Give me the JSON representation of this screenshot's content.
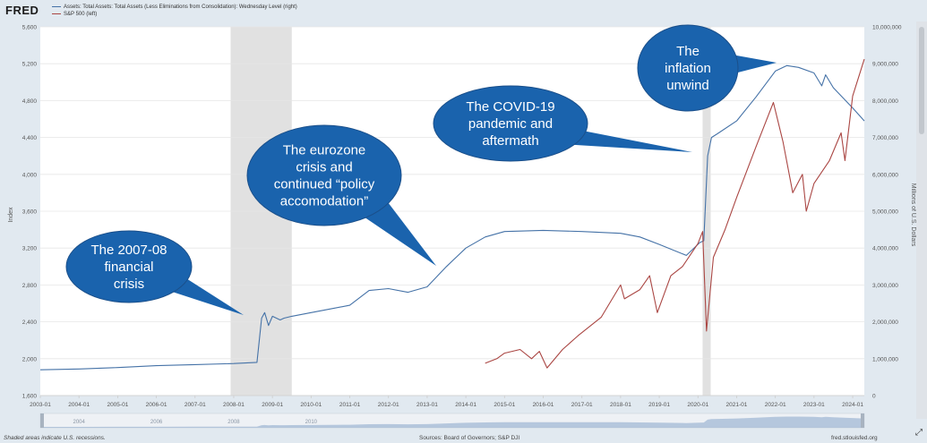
{
  "header": {
    "logo": "FRED",
    "legend": [
      {
        "label": "Assets: Total Assets: Total Assets (Less Eliminations from Consolidation): Wednesday Level (right)",
        "color": "#4572a7"
      },
      {
        "label": "S&P 500 (left)",
        "color": "#aa4643"
      }
    ]
  },
  "chart_data": {
    "type": "line",
    "left_axis": {
      "label": "Index",
      "ylim": [
        1600,
        5600
      ],
      "ticks": [
        "1,600",
        "2,000",
        "2,400",
        "2,800",
        "3,200",
        "3,600",
        "4,000",
        "4,400",
        "4,800",
        "5,200",
        "5,600"
      ]
    },
    "right_axis": {
      "label": "Millions of U.S. Dollars",
      "ylim": [
        0,
        10000000
      ],
      "ticks": [
        "0",
        "1,000,000",
        "2,000,000",
        "3,000,000",
        "4,000,000",
        "5,000,000",
        "6,000,000",
        "7,000,000",
        "8,000,000",
        "9,000,000",
        "10,000,000"
      ]
    },
    "x_axis": {
      "xlim": [
        2003.0,
        2024.3
      ],
      "ticks": [
        "2003-01",
        "2004-01",
        "2005-01",
        "2006-01",
        "2007-01",
        "2008-01",
        "2009-01",
        "2010-01",
        "2011-01",
        "2012-01",
        "2013-01",
        "2014-01",
        "2015-01",
        "2016-01",
        "2017-01",
        "2018-01",
        "2019-01",
        "2020-01",
        "2021-01",
        "2022-01",
        "2023-01",
        "2024-01"
      ]
    },
    "recessions": [
      [
        2007.92,
        2009.5
      ],
      [
        2020.12,
        2020.33
      ]
    ],
    "series": [
      {
        "name": "Assets: Total Assets: Total Assets (Less Eliminations from Consolidation): Wednesday Level (right)",
        "axis": "right",
        "color": "#4572a7",
        "x": [
          2003.0,
          2004.0,
          2005.0,
          2006.0,
          2007.0,
          2008.0,
          2008.6,
          2008.72,
          2008.8,
          2008.9,
          2009.0,
          2009.2,
          2009.3,
          2009.5,
          2010.0,
          2010.5,
          2011.0,
          2011.5,
          2012.0,
          2012.5,
          2013.0,
          2013.5,
          2014.0,
          2014.5,
          2015.0,
          2016.0,
          2017.0,
          2018.0,
          2018.5,
          2019.0,
          2019.7,
          2020.05,
          2020.15,
          2020.25,
          2020.35,
          2020.5,
          2021.0,
          2021.5,
          2022.0,
          2022.3,
          2022.6,
          2023.0,
          2023.2,
          2023.3,
          2023.5,
          2024.0,
          2024.3
        ],
        "y": [
          700000,
          720000,
          760000,
          810000,
          840000,
          870000,
          900000,
          2100000,
          2250000,
          1900000,
          2150000,
          2050000,
          2100000,
          2150000,
          2250000,
          2350000,
          2450000,
          2850000,
          2900000,
          2800000,
          2950000,
          3500000,
          4000000,
          4300000,
          4450000,
          4480000,
          4450000,
          4400000,
          4300000,
          4100000,
          3800000,
          4150000,
          4200000,
          6500000,
          7000000,
          7100000,
          7450000,
          8100000,
          8800000,
          8950000,
          8900000,
          8750000,
          8400000,
          8700000,
          8350000,
          7800000,
          7450000
        ]
      },
      {
        "name": "S&P 500 (left)",
        "axis": "left",
        "color": "#aa4643",
        "x": [
          2014.5,
          2014.8,
          2015.0,
          2015.4,
          2015.7,
          2015.9,
          2016.1,
          2016.5,
          2016.9,
          2017.5,
          2018.0,
          2018.1,
          2018.5,
          2018.75,
          2018.95,
          2019.3,
          2019.6,
          2020.0,
          2020.12,
          2020.22,
          2020.4,
          2020.7,
          2021.0,
          2021.5,
          2021.95,
          2022.2,
          2022.45,
          2022.7,
          2022.8,
          2023.0,
          2023.4,
          2023.7,
          2023.8,
          2024.0,
          2024.3
        ],
        "y": [
          1950,
          2000,
          2060,
          2100,
          2000,
          2080,
          1900,
          2100,
          2250,
          2450,
          2800,
          2650,
          2750,
          2900,
          2500,
          2900,
          3000,
          3250,
          3380,
          2300,
          3100,
          3400,
          3750,
          4300,
          4780,
          4350,
          3800,
          4000,
          3600,
          3900,
          4150,
          4450,
          4150,
          4850,
          5250
        ]
      }
    ],
    "annotations": [
      [
        "The 2007-08",
        "financial",
        "crisis"
      ],
      [
        "The eurozone",
        "crisis and",
        "continued “policy",
        "accomodation”"
      ],
      [
        "The COVID-19",
        "pandemic and",
        "aftermath"
      ],
      [
        "The",
        "inflation",
        "unwind"
      ]
    ],
    "navigator_ticks": [
      "2004",
      "2006",
      "2008",
      "2010"
    ]
  },
  "footer": {
    "left": "Shaded areas indicate U.S. recessions.",
    "middle": "Sources: Board of Governors; S&P DJI",
    "right": "fred.stlouisfed.org"
  },
  "icons": {
    "corner": "expand-arrows-icon"
  }
}
